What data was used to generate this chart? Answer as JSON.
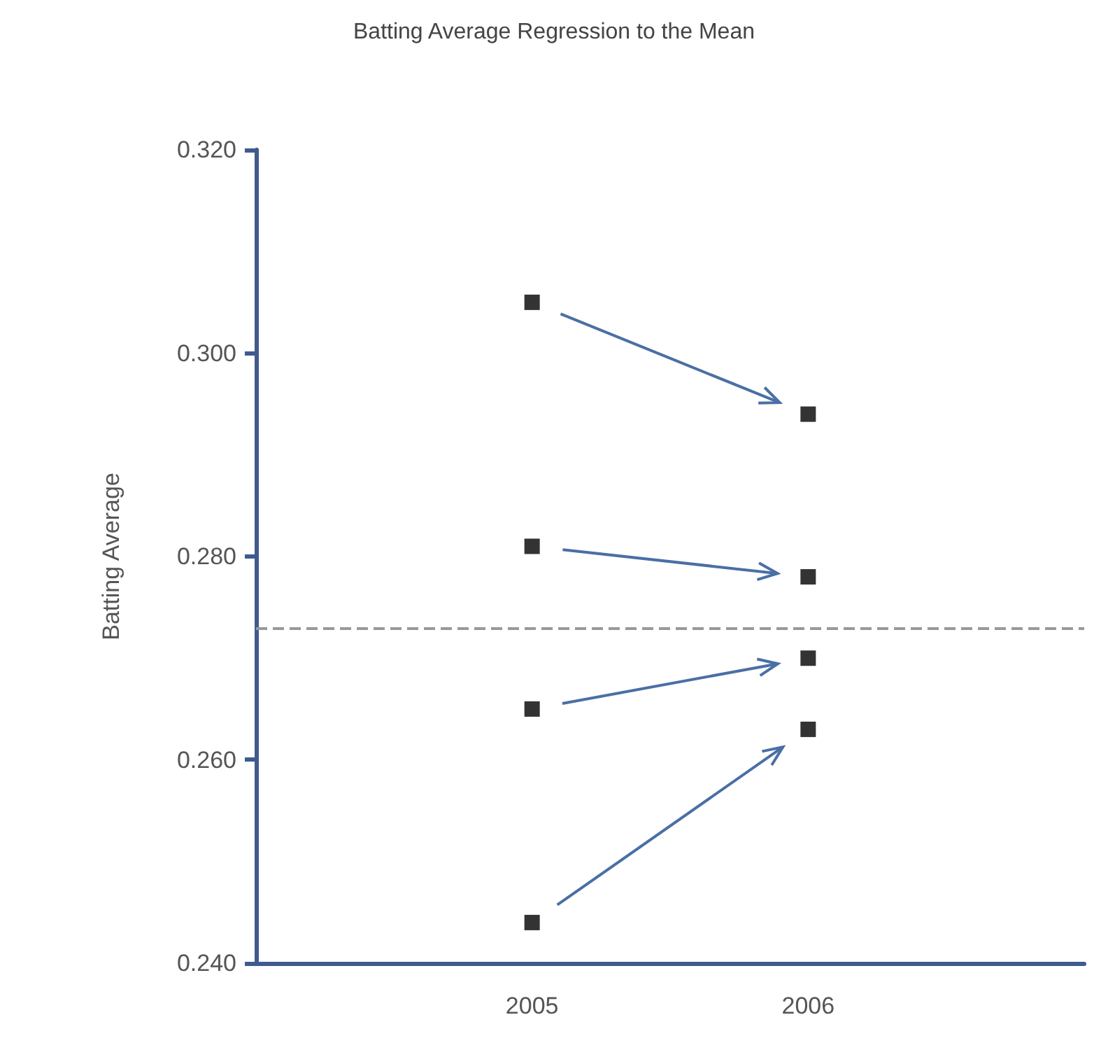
{
  "chart_data": {
    "type": "scatter",
    "title": "Batting Average Regression to the Mean",
    "ylabel": "Batting Average",
    "x": [
      2005,
      2006
    ],
    "series": [
      {
        "color": "#000000",
        "values": [
          0.305,
          0.294
        ]
      },
      {
        "color": "#000000",
        "values": [
          0.281,
          0.278
        ]
      },
      {
        "color": "#000000",
        "values": [
          0.265,
          0.27
        ]
      },
      {
        "color": "#000000",
        "values": [
          0.244,
          0.263
        ]
      }
    ],
    "xlim": [
      2004,
      2007
    ],
    "xticks": [
      2005,
      2006
    ],
    "ylim": [
      0.24,
      0.32
    ],
    "yticks": [
      {
        "value": 0.24,
        "label": "0.240"
      },
      {
        "value": 0.26,
        "label": "0.260"
      },
      {
        "value": 0.28,
        "label": "0.280"
      },
      {
        "value": 0.3,
        "label": "0.300"
      },
      {
        "value": 0.32,
        "label": "0.320"
      }
    ],
    "ref_lines": [
      {
        "axis": "y",
        "value": 0.273,
        "color": "#999999",
        "line_style": "dashed"
      }
    ],
    "marker": "square",
    "grid": false
  }
}
